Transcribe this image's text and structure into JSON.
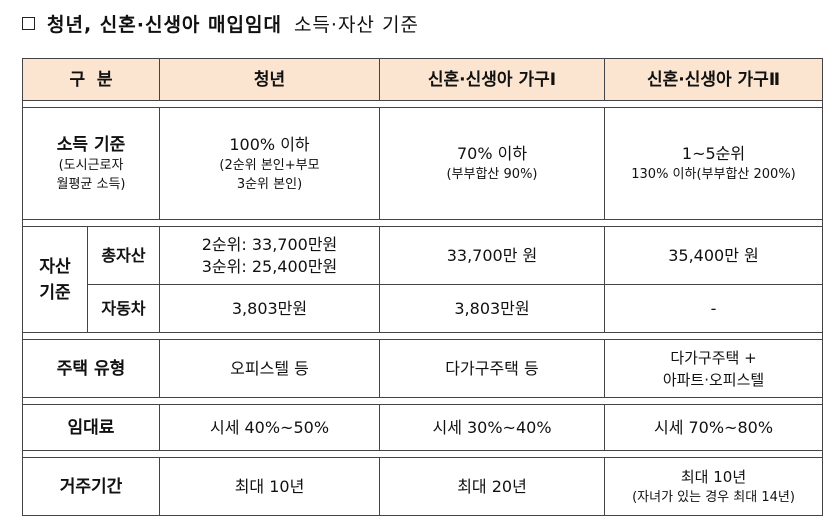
{
  "title": {
    "main": "청년, 신혼·신생아 매입임대",
    "sub": "소득·자산 기준"
  },
  "headers": [
    "구  분",
    "청년",
    "신혼·신생아 가구Ⅰ",
    "신혼·신생아 가구Ⅱ"
  ],
  "income": {
    "label": "소득 기준",
    "label_note1": "(도시근로자",
    "label_note2": "월평균 소득)",
    "youth_line1": "100% 이하",
    "youth_line2": "(2순위 본인+부모",
    "youth_line3": "3순위 본인)",
    "h1_line1": "70% 이하",
    "h1_line2": "(부부합산 90%)",
    "h2_line1": "1~5순위",
    "h2_line2": "130% 이하(부부합산 200%)"
  },
  "assets": {
    "label": "자산 기준",
    "total": {
      "label": "총자산",
      "youth_line1": "2순위: 33,700만원",
      "youth_line2": "3순위: 25,400만원",
      "h1": "33,700만 원",
      "h2": "35,400만 원"
    },
    "car": {
      "label": "자동차",
      "youth": "3,803만원",
      "h1": "3,803만원",
      "h2": "-"
    }
  },
  "housing": {
    "label": "주택 유형",
    "youth": "오피스텔 등",
    "h1": "다가구주택 등",
    "h2_line1": "다가구주택 +",
    "h2_line2": "아파트·오피스텔"
  },
  "rent": {
    "label": "임대료",
    "youth": "시세 40%~50%",
    "h1": "시세 30%~40%",
    "h2": "시세 70%~80%"
  },
  "period": {
    "label": "거주기간",
    "youth": "최대 10년",
    "h1": "최대 20년",
    "h2_line1": "최대 10년",
    "h2_line2": "(자녀가 있는 경우 최대 14년)"
  }
}
